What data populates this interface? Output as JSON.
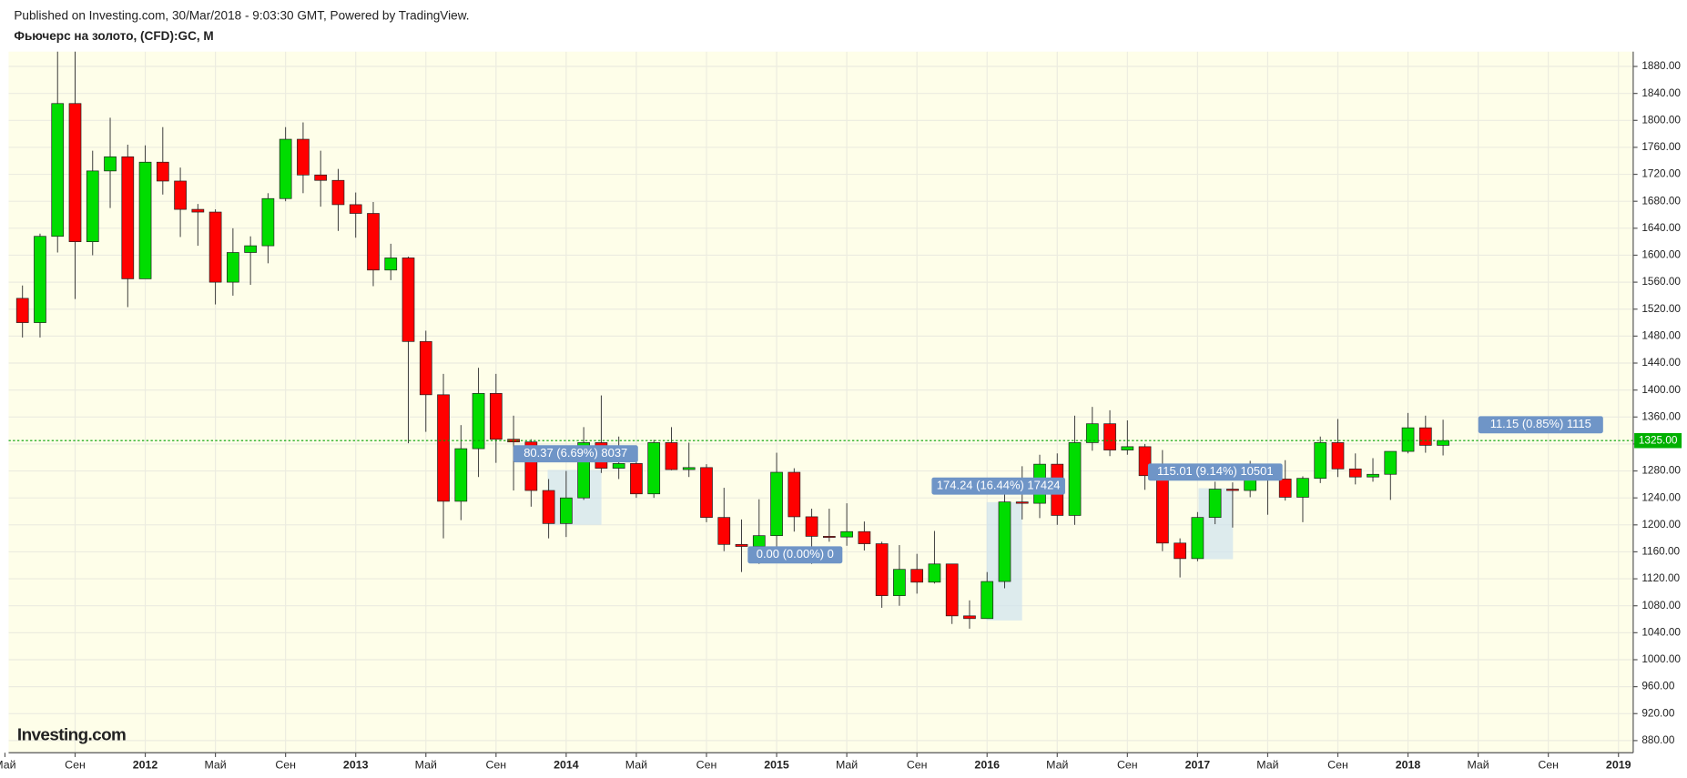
{
  "header": {
    "published": "Published on Investing.com, 30/Mar/2018 - 9:03:30 GMT, Powered by TradingView.",
    "symbol": "Фьючерс на золото, (CFD):GC, M",
    "logo": "Investing.com"
  },
  "chart_data": {
    "type": "candlestick",
    "grid": true,
    "up_color": "#00dd00",
    "down_color": "#ff0000",
    "x": [
      "2011-06",
      "2011-07",
      "2011-08",
      "2011-09",
      "2011-10",
      "2011-11",
      "2011-12",
      "2012-01",
      "2012-02",
      "2012-03",
      "2012-04",
      "2012-05",
      "2012-06",
      "2012-07",
      "2012-08",
      "2012-09",
      "2012-10",
      "2012-11",
      "2012-12",
      "2013-01",
      "2013-02",
      "2013-03",
      "2013-04",
      "2013-05",
      "2013-06",
      "2013-07",
      "2013-08",
      "2013-09",
      "2013-10",
      "2013-11",
      "2013-12",
      "2014-01",
      "2014-02",
      "2014-03",
      "2014-04",
      "2014-05",
      "2014-06",
      "2014-07",
      "2014-08",
      "2014-09",
      "2014-10",
      "2014-11",
      "2014-12",
      "2015-01",
      "2015-02",
      "2015-03",
      "2015-04",
      "2015-05",
      "2015-06",
      "2015-07",
      "2015-08",
      "2015-09",
      "2015-10",
      "2015-11",
      "2015-12",
      "2016-01",
      "2016-02",
      "2016-03",
      "2016-04",
      "2016-05",
      "2016-06",
      "2016-07",
      "2016-08",
      "2016-09",
      "2016-10",
      "2016-11",
      "2016-12",
      "2017-01",
      "2017-02",
      "2017-03",
      "2017-04",
      "2017-05",
      "2017-06",
      "2017-07",
      "2017-08",
      "2017-09",
      "2017-10",
      "2017-11",
      "2017-12",
      "2018-01",
      "2018-02",
      "2018-03"
    ],
    "open": [
      1536,
      1500,
      1628,
      1825,
      1620,
      1725,
      1746,
      1565,
      1738,
      1710,
      1668,
      1664,
      1560,
      1604,
      1614,
      1684,
      1772,
      1719,
      1711,
      1675,
      1662,
      1578,
      1596,
      1472,
      1393,
      1235,
      1313,
      1395,
      1327,
      1323,
      1251,
      1202,
      1240,
      1322,
      1284,
      1291,
      1246,
      1322,
      1282,
      1285,
      1211,
      1171,
      1168,
      1184,
      1278,
      1212,
      1183,
      1182,
      1190,
      1172,
      1095,
      1134,
      1115,
      1142,
      1065,
      1061,
      1116,
      1234,
      1232,
      1290,
      1214,
      1322,
      1350,
      1311,
      1316,
      1273,
      1173,
      1150,
      1211,
      1253,
      1251,
      1268,
      1268,
      1241,
      1269,
      1322,
      1283,
      1271,
      1275,
      1309,
      1344,
      1318
    ],
    "high": [
      1555,
      1632,
      1911,
      1920,
      1755,
      1804,
      1764,
      1763,
      1790,
      1730,
      1676,
      1668,
      1640,
      1628,
      1692,
      1790,
      1797,
      1755,
      1728,
      1693,
      1679,
      1617,
      1598,
      1488,
      1424,
      1348,
      1433,
      1424,
      1362,
      1327,
      1268,
      1280,
      1345,
      1392,
      1331,
      1315,
      1326,
      1345,
      1322,
      1290,
      1255,
      1208,
      1238,
      1307,
      1284,
      1224,
      1224,
      1232,
      1205,
      1175,
      1170,
      1157,
      1191,
      1142,
      1088,
      1130,
      1263,
      1287,
      1304,
      1306,
      1362,
      1375,
      1370,
      1355,
      1320,
      1311,
      1180,
      1219,
      1264,
      1263,
      1295,
      1270,
      1296,
      1272,
      1331,
      1357,
      1306,
      1299,
      1309,
      1366,
      1362,
      1356
    ],
    "low": [
      1478,
      1478,
      1604,
      1535,
      1600,
      1670,
      1523,
      1565,
      1690,
      1627,
      1614,
      1527,
      1540,
      1556,
      1588,
      1680,
      1692,
      1672,
      1636,
      1626,
      1554,
      1563,
      1321,
      1338,
      1180,
      1207,
      1271,
      1292,
      1251,
      1227,
      1180,
      1182,
      1237,
      1277,
      1268,
      1240,
      1240,
      1281,
      1271,
      1204,
      1161,
      1130,
      1142,
      1167,
      1190,
      1142,
      1175,
      1169,
      1162,
      1077,
      1080,
      1098,
      1113,
      1053,
      1046,
      1061,
      1106,
      1208,
      1210,
      1200,
      1200,
      1310,
      1302,
      1304,
      1252,
      1161,
      1122,
      1146,
      1201,
      1196,
      1241,
      1215,
      1236,
      1204,
      1262,
      1271,
      1260,
      1264,
      1237,
      1306,
      1307,
      1303
    ],
    "close": [
      1500,
      1628,
      1825,
      1620,
      1725,
      1746,
      1565,
      1738,
      1710,
      1668,
      1664,
      1560,
      1604,
      1614,
      1684,
      1772,
      1719,
      1711,
      1675,
      1662,
      1578,
      1596,
      1472,
      1393,
      1235,
      1313,
      1395,
      1327,
      1323,
      1251,
      1202,
      1240,
      1322,
      1284,
      1291,
      1246,
      1322,
      1282,
      1285,
      1211,
      1171,
      1168,
      1184,
      1278,
      1212,
      1183,
      1182,
      1190,
      1172,
      1095,
      1134,
      1115,
      1142,
      1065,
      1061,
      1116,
      1234,
      1232,
      1290,
      1214,
      1322,
      1350,
      1311,
      1316,
      1273,
      1173,
      1150,
      1211,
      1253,
      1251,
      1268,
      1268,
      1241,
      1269,
      1322,
      1283,
      1271,
      1275,
      1309,
      1344,
      1318,
      1325
    ],
    "xlim": [
      "2011-05",
      "2019-02"
    ],
    "xticks": [
      {
        "value": "2011-05",
        "label": "Май"
      },
      {
        "value": "2011-09",
        "label": "Сен"
      },
      {
        "value": "2012-01",
        "label": "2012"
      },
      {
        "value": "2012-05",
        "label": "Май"
      },
      {
        "value": "2012-09",
        "label": "Сен"
      },
      {
        "value": "2013-01",
        "label": "2013"
      },
      {
        "value": "2013-05",
        "label": "Май"
      },
      {
        "value": "2013-09",
        "label": "Сен"
      },
      {
        "value": "2014-01",
        "label": "2014"
      },
      {
        "value": "2014-05",
        "label": "Май"
      },
      {
        "value": "2014-09",
        "label": "Сен"
      },
      {
        "value": "2015-01",
        "label": "2015"
      },
      {
        "value": "2015-05",
        "label": "Май"
      },
      {
        "value": "2015-09",
        "label": "Сен"
      },
      {
        "value": "2016-01",
        "label": "2016"
      },
      {
        "value": "2016-05",
        "label": "Май"
      },
      {
        "value": "2016-09",
        "label": "Сен"
      },
      {
        "value": "2017-01",
        "label": "2017"
      },
      {
        "value": "2017-05",
        "label": "Май"
      },
      {
        "value": "2017-09",
        "label": "Сен"
      },
      {
        "value": "2018-01",
        "label": "2018"
      },
      {
        "value": "2018-05",
        "label": "Май"
      },
      {
        "value": "2018-09",
        "label": "Сен"
      },
      {
        "value": "2019-01",
        "label": "2019"
      }
    ],
    "ylim": [
      862,
      1902
    ],
    "yticks": [
      {
        "value": 880,
        "label": "880.00"
      },
      {
        "value": 920,
        "label": "920.00"
      },
      {
        "value": 960,
        "label": "960.00"
      },
      {
        "value": 1000,
        "label": "1000.00"
      },
      {
        "value": 1040,
        "label": "1040.00"
      },
      {
        "value": 1080,
        "label": "1080.00"
      },
      {
        "value": 1120,
        "label": "1120.00"
      },
      {
        "value": 1160,
        "label": "1160.00"
      },
      {
        "value": 1200,
        "label": "1200.00"
      },
      {
        "value": 1240,
        "label": "1240.00"
      },
      {
        "value": 1280,
        "label": "1280.00"
      },
      {
        "value": 1320,
        "label": "1320.00"
      },
      {
        "value": 1360,
        "label": "1360.00"
      },
      {
        "value": 1400,
        "label": "1400.00"
      },
      {
        "value": 1440,
        "label": "1440.00"
      },
      {
        "value": 1480,
        "label": "1480.00"
      },
      {
        "value": 1520,
        "label": "1520.00"
      },
      {
        "value": 1560,
        "label": "1560.00"
      },
      {
        "value": 1600,
        "label": "1600.00"
      },
      {
        "value": 1640,
        "label": "1640.00"
      },
      {
        "value": 1680,
        "label": "1680.00"
      },
      {
        "value": 1720,
        "label": "1720.00"
      },
      {
        "value": 1760,
        "label": "1760.00"
      },
      {
        "value": 1800,
        "label": "1800.00"
      },
      {
        "value": 1840,
        "label": "1840.00"
      },
      {
        "value": 1880,
        "label": "1880.00"
      }
    ],
    "last_price": {
      "value": 1325,
      "label": "1325.00"
    },
    "annotations": [
      "80.37 (6.69%) 8037",
      "0.00 (0.00%) 0",
      "174.24 (16.44%) 17424",
      "115.01 (9.14%) 10501",
      "11.15 (0.85%) 1115"
    ]
  }
}
